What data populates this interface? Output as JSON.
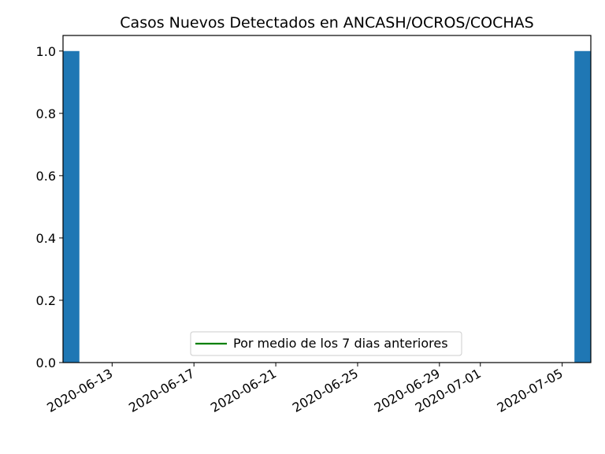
{
  "chart_data": {
    "type": "bar",
    "title": "Casos Nuevos Detectados en ANCASH/OCROS/COCHAS",
    "xlabel": "",
    "ylabel": "",
    "x_axis_type": "date",
    "xlim": [
      "2020-06-11",
      "2020-07-06"
    ],
    "ylim": [
      0,
      1.05
    ],
    "grid": false,
    "legend_position": "lower center",
    "yticks": [
      "0.0",
      "0.2",
      "0.4",
      "0.6",
      "0.8",
      "1.0"
    ],
    "xticks": [
      "2020-06-13",
      "2020-06-17",
      "2020-06-21",
      "2020-06-25",
      "2020-06-29",
      "2020-07-01",
      "2020-07-05"
    ],
    "bars": [
      {
        "date": "2020-06-11",
        "value": 1
      },
      {
        "date": "2020-07-06",
        "value": 1
      }
    ],
    "bar_color": "#1f77b4",
    "series": [
      {
        "name": "Por medio de los 7 dias anteriores",
        "type": "line",
        "color": "#008000",
        "values": []
      }
    ]
  }
}
